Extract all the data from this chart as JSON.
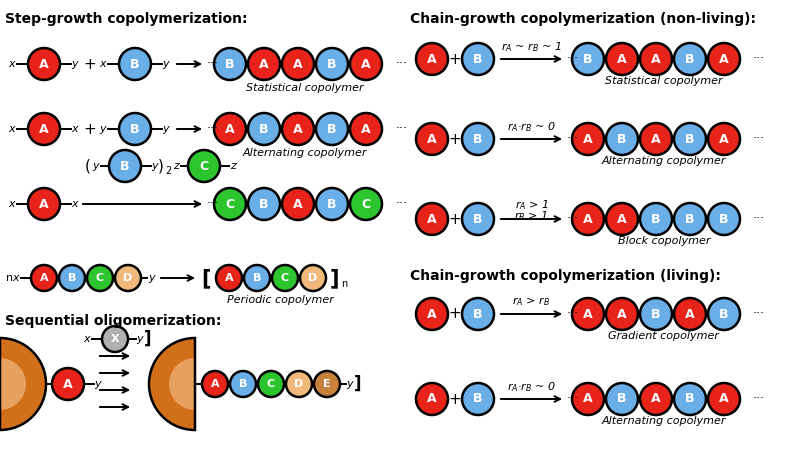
{
  "title_left": "Step-growth copolymerization:",
  "title_right_nonliving": "Chain-growth copolymerization (non-living):",
  "title_right_living": "Chain-growth copolymerization (living):",
  "title_seq": "Sequential oligomerization:",
  "colors": {
    "A": "#e8231a",
    "B": "#6aaee8",
    "C": "#2dc52d",
    "D": "#f0b87a",
    "E": "#c8813a",
    "X": "#b0b0b0",
    "orange_blob": "#d2701a"
  },
  "text_color": "white",
  "outline_color": "black",
  "figw": 8.03,
  "figh": 4.74,
  "dpi": 100
}
